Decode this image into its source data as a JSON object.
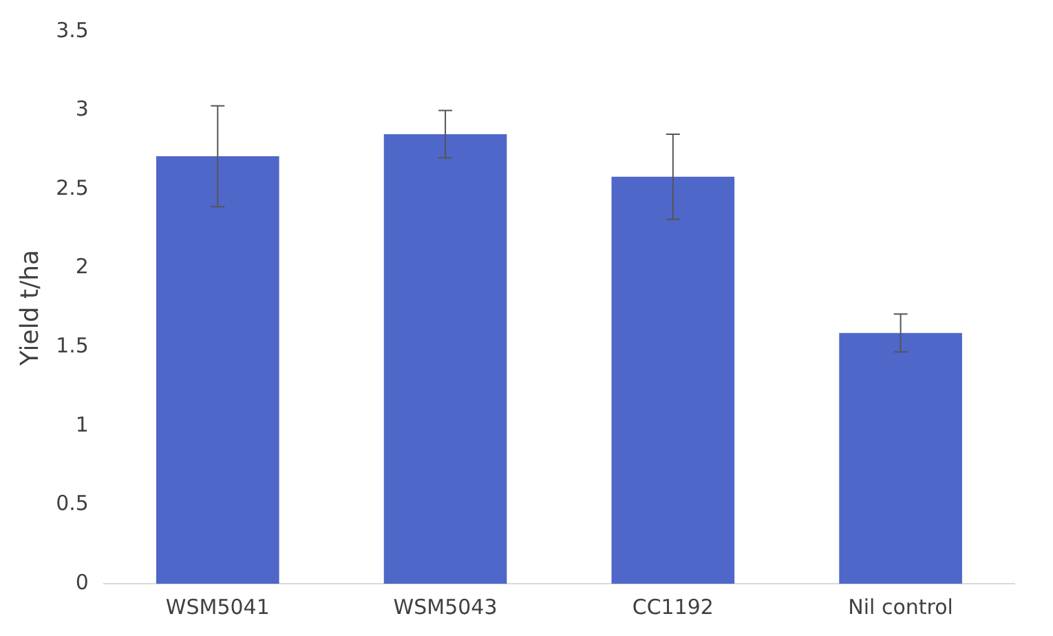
{
  "chart_data": {
    "type": "bar",
    "ylabel": "Yield t/ha",
    "categories": [
      "WSM5041",
      "WSM5043",
      "CC1192",
      "Nil control"
    ],
    "values": [
      2.71,
      2.85,
      2.58,
      1.59
    ],
    "errors": [
      0.32,
      0.15,
      0.27,
      0.12
    ],
    "color": "#4f67c9",
    "ylim": [
      0,
      3.5
    ],
    "yticks": [
      0,
      0.5,
      1,
      1.5,
      2,
      2.5,
      3,
      3.5
    ],
    "grid": false,
    "legend": false
  }
}
